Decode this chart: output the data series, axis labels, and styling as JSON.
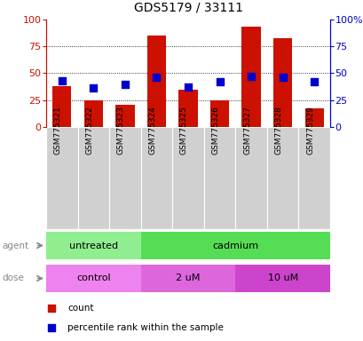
{
  "title": "GDS5179 / 33111",
  "samples": [
    "GSM775321",
    "GSM775322",
    "GSM775323",
    "GSM775324",
    "GSM775325",
    "GSM775326",
    "GSM775327",
    "GSM775328",
    "GSM775329"
  ],
  "count_values": [
    38,
    25,
    21,
    85,
    35,
    25,
    93,
    83,
    17
  ],
  "percentile_values": [
    43,
    36,
    40,
    46,
    37,
    42,
    47,
    46,
    42
  ],
  "agent_groups": [
    {
      "label": "untreated",
      "start": 0,
      "end": 3,
      "color": "#90ee90"
    },
    {
      "label": "cadmium",
      "start": 3,
      "end": 9,
      "color": "#55dd55"
    }
  ],
  "dose_groups": [
    {
      "label": "control",
      "start": 0,
      "end": 3,
      "color": "#ee82ee"
    },
    {
      "label": "2 uM",
      "start": 3,
      "end": 6,
      "color": "#dd66dd"
    },
    {
      "label": "10 uM",
      "start": 6,
      "end": 9,
      "color": "#cc44cc"
    }
  ],
  "bar_color": "#cc1100",
  "dot_color": "#0000cc",
  "ylim": [
    0,
    100
  ],
  "yticks": [
    0,
    25,
    50,
    75,
    100
  ],
  "grid_lines": [
    25,
    50,
    75
  ],
  "left_ycolor": "#cc1100",
  "right_ycolor": "#0000cc",
  "bar_width": 0.6,
  "dot_size": 28,
  "sample_bg": "#d0d0d0"
}
